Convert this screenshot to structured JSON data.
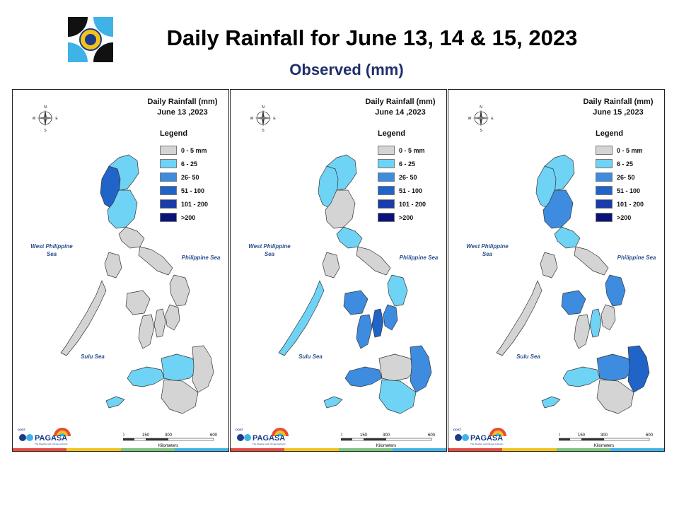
{
  "header": {
    "title": "Daily Rainfall for June 13, 14 & 15, 2023",
    "subtitle": "Observed (mm)"
  },
  "colors": {
    "0-5": "#d4d4d4",
    "6-25": "#6fd3f5",
    "26-50": "#3d8ce0",
    "51-100": "#2164c8",
    "101-200": "#1a3ba8",
    ">200": "#0b1378"
  },
  "legend": {
    "title": "Legend",
    "items": [
      {
        "label": "0 - 5 mm",
        "color": "#d4d4d4"
      },
      {
        "label": "6 - 25",
        "color": "#6fd3f5"
      },
      {
        "label": "26- 50",
        "color": "#3d8ce0"
      },
      {
        "label": "51 - 100",
        "color": "#2164c8"
      },
      {
        "label": "101 - 200",
        "color": "#1a3ba8"
      },
      {
        "label": ">200",
        "color": "#0b1378"
      }
    ]
  },
  "seas": {
    "west": "West Philippine Sea",
    "philippine": "Philippine Sea",
    "sulu": "Sulu Sea"
  },
  "compass_letters": {
    "n": "N",
    "s": "S",
    "e": "E",
    "w": "W"
  },
  "scale": {
    "ticks": [
      "0",
      "150",
      "300",
      "600"
    ],
    "unit": "Kilometers"
  },
  "pagasa": {
    "brand": "PAGASA",
    "tagline": "The Weather and Climate Authority",
    "prefix": "DOST"
  },
  "panels": [
    {
      "line1": "Daily Rainfall (mm)",
      "line2": "June 13 ,2023",
      "regions": {
        "luzon_north": "6-25",
        "luzon_core": "51-100",
        "luzon_central": "6-25",
        "luzon_south": "0-5",
        "bicol": "0-5",
        "mindoro": "0-5",
        "palawan": "0-5",
        "panay": "0-5",
        "negros": "0-5",
        "samar": "0-5",
        "leyte": "0-5",
        "cebu": "0-5",
        "mindanao_west": "6-25",
        "mindanao_central": "6-25",
        "mindanao_east": "0-5",
        "mindanao_south": "0-5",
        "sulu": "6-25"
      }
    },
    {
      "line1": "Daily Rainfall (mm)",
      "line2": "June 14 ,2023",
      "regions": {
        "luzon_north": "6-25",
        "luzon_core": "6-25",
        "luzon_central": "0-5",
        "luzon_south": "6-25",
        "bicol": "0-5",
        "mindoro": "0-5",
        "palawan": "6-25",
        "panay": "26-50",
        "negros": "26-50",
        "samar": "6-25",
        "leyte": "26-50",
        "cebu": "51-100",
        "mindanao_west": "26-50",
        "mindanao_central": "0-5",
        "mindanao_east": "26-50",
        "mindanao_south": "6-25",
        "sulu": "6-25"
      }
    },
    {
      "line1": "Daily Rainfall (mm)",
      "line2": "June 15 ,2023",
      "regions": {
        "luzon_north": "6-25",
        "luzon_core": "6-25",
        "luzon_central": "26-50",
        "luzon_south": "6-25",
        "bicol": "0-5",
        "mindoro": "0-5",
        "palawan": "0-5",
        "panay": "26-50",
        "negros": "0-5",
        "samar": "26-50",
        "leyte": "0-5",
        "cebu": "6-25",
        "mindanao_west": "6-25",
        "mindanao_central": "26-50",
        "mindanao_east": "51-100",
        "mindanao_south": "0-5",
        "sulu": "6-25"
      }
    }
  ]
}
